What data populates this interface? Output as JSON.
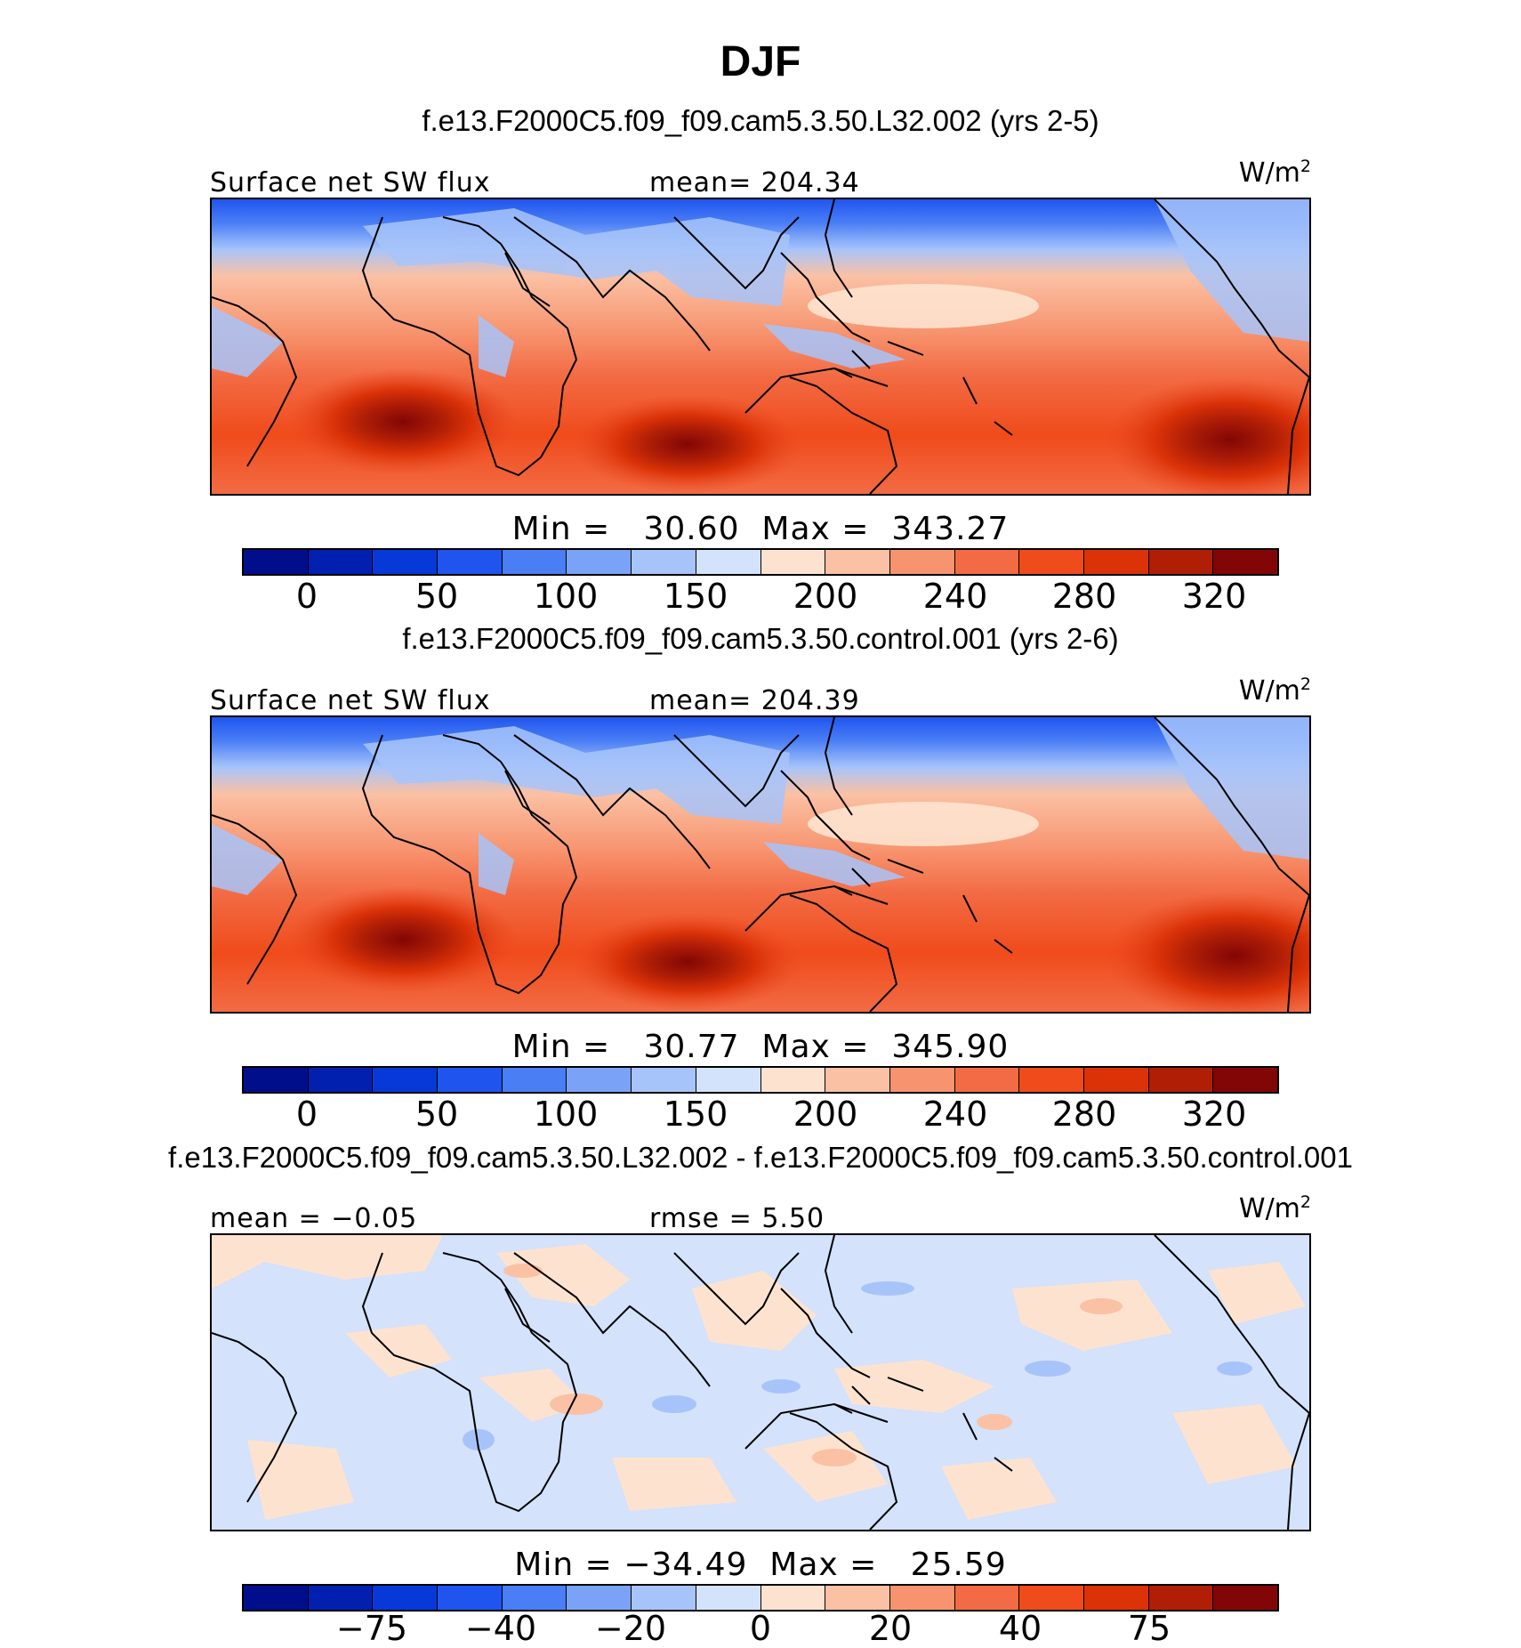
{
  "title": "DJF",
  "colors": {
    "raw": [
      "#000e8c",
      "#0120b0",
      "#0739d8",
      "#1f55ee",
      "#4a7ef5",
      "#7aa3f7",
      "#a7c4fa",
      "#d3e3fc",
      "#fde3cf",
      "#fbc1a4",
      "#f7946f",
      "#f26b44",
      "#f04b1b",
      "#db3208",
      "#b01e06",
      "#820605"
    ],
    "ocean_raw": "#e94a24",
    "ocean_diff": "#d4e2fb",
    "coast": "#000000"
  },
  "panels": [
    {
      "case_title": "f.e13.F2000C5.f09_f09.cam5.3.50.L32.002 (yrs 2-5)",
      "left_label": "Surface net SW flux",
      "center_label": "mean= 204.34",
      "units_base": "W/m",
      "units_exp": "2",
      "stats_text": "Min =   30.60  Max =  343.27",
      "colorbar_ticks": [
        "0",
        "50",
        "100",
        "150",
        "200",
        "240",
        "280",
        "320"
      ]
    },
    {
      "case_title": "f.e13.F2000C5.f09_f09.cam5.3.50.control.001 (yrs 2-6)",
      "left_label": "Surface net SW flux",
      "center_label": "mean= 204.39",
      "units_base": "W/m",
      "units_exp": "2",
      "stats_text": "Min =   30.77  Max =  345.90",
      "colorbar_ticks": [
        "0",
        "50",
        "100",
        "150",
        "200",
        "240",
        "280",
        "320"
      ]
    },
    {
      "case_title": "f.e13.F2000C5.f09_f09.cam5.3.50.L32.002 - f.e13.F2000C5.f09_f09.cam5.3.50.control.001",
      "left_label": "mean =  −0.05",
      "center_label": "rmse =    5.50",
      "units_base": "W/m",
      "units_exp": "2",
      "stats_text": "Min = −34.49  Max =   25.59",
      "colorbar_ticks": [
        "−75",
        "−40",
        "−20",
        "0",
        "20",
        "40",
        "75"
      ]
    }
  ]
}
